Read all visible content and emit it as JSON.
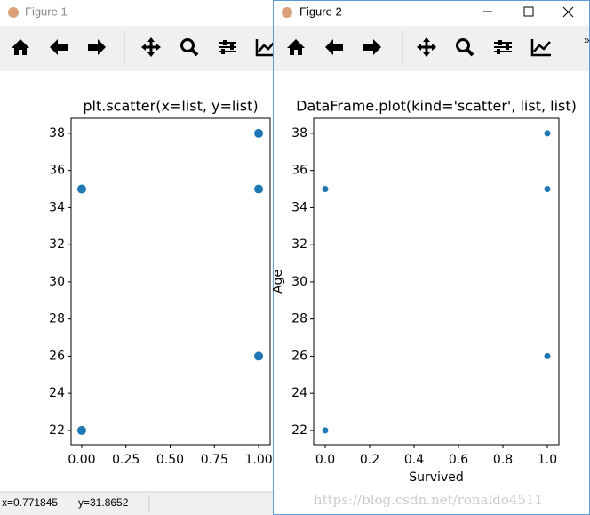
{
  "windows": [
    {
      "title": "Figure 1",
      "status": [
        "x=0.771845",
        "y=31.8652"
      ]
    },
    {
      "title": "Figure 2",
      "watermark": "https://blog.csdn.net/ronaldo4511"
    }
  ],
  "chart_data": [
    {
      "type": "scatter",
      "title": "plt.scatter(x=list, y=list)",
      "color": "#1f77b4",
      "x": [
        0,
        0,
        1,
        1,
        1
      ],
      "y": [
        35,
        22,
        38,
        35,
        26
      ],
      "xlim": [
        -0.06,
        1.065
      ],
      "ylim": [
        21.23,
        38.81
      ],
      "xticks": [
        {
          "value": 0,
          "label": "0.00"
        },
        {
          "value": 0.25,
          "label": "0.25"
        },
        {
          "value": 0.5,
          "label": "0.50"
        },
        {
          "value": 0.75,
          "label": "0.75"
        },
        {
          "value": 1,
          "label": "1.00"
        }
      ],
      "yticks": [
        22,
        24,
        26,
        28,
        30,
        32,
        34,
        36,
        38
      ]
    },
    {
      "type": "scatter",
      "title": "DataFrame.plot(kind='scatter', list, list)",
      "color": "#1f77b4",
      "xlabel": "Survived",
      "ylabel": "Age",
      "x": [
        0,
        0,
        1,
        1,
        1
      ],
      "y": [
        35,
        22,
        38,
        35,
        26
      ],
      "xlim": [
        -0.052,
        1.052
      ],
      "ylim": [
        21.23,
        38.81
      ],
      "xticks": [
        {
          "value": 0,
          "label": "0.0"
        },
        {
          "value": 0.2,
          "label": "0.2"
        },
        {
          "value": 0.4,
          "label": "0.4"
        },
        {
          "value": 0.6,
          "label": "0.6"
        },
        {
          "value": 0.8,
          "label": "0.8"
        },
        {
          "value": 1,
          "label": "1.0"
        }
      ],
      "yticks": [
        22,
        24,
        26,
        28,
        30,
        32,
        34,
        36,
        38
      ]
    }
  ]
}
